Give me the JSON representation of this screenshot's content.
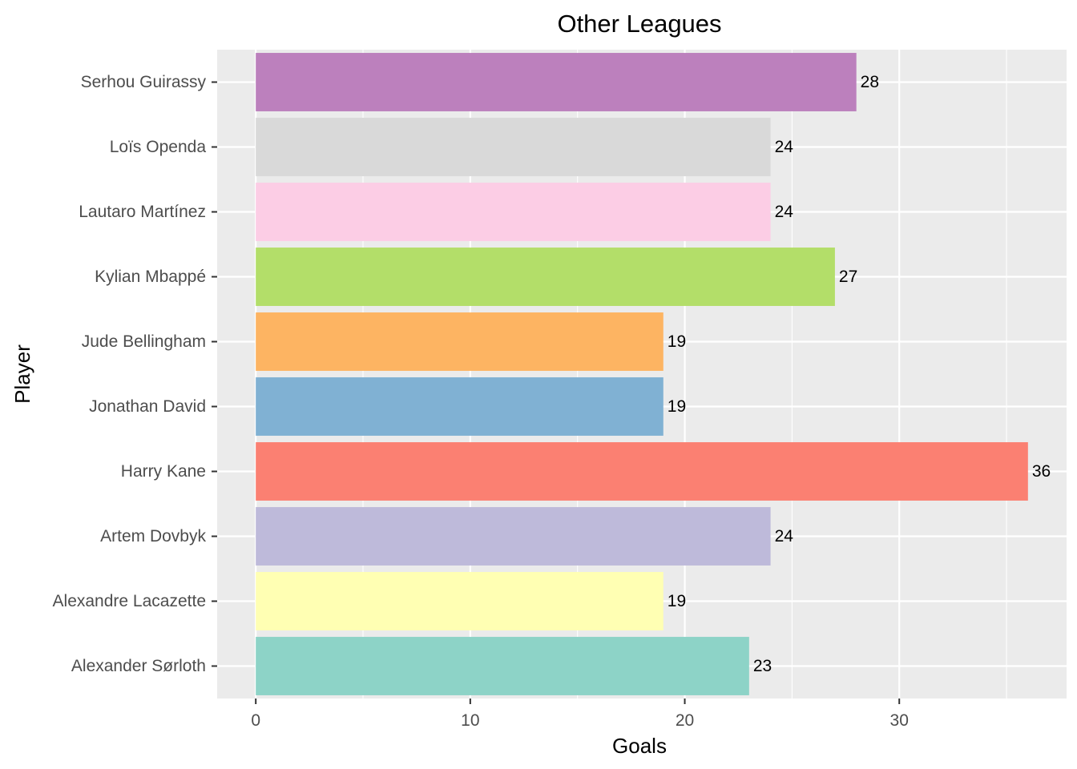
{
  "chart_data": {
    "type": "bar",
    "orientation": "horizontal",
    "title": "Other Leagues",
    "xlabel": "Goals",
    "ylabel": "Player",
    "xlim": [
      -1.8,
      37.8
    ],
    "x_ticks": [
      0,
      10,
      20,
      30
    ],
    "x_tick_labels": [
      "0",
      "10",
      "20",
      "30"
    ],
    "grid": true,
    "legend": "none",
    "categories": [
      "Serhou Guirassy",
      "Loïs Openda",
      "Lautaro Martínez",
      "Kylian Mbappé",
      "Jude Bellingham",
      "Jonathan David",
      "Harry Kane",
      "Artem Dovbyk",
      "Alexandre Lacazette",
      "Alexander Sørloth"
    ],
    "values": [
      28,
      24,
      24,
      27,
      19,
      19,
      36,
      24,
      19,
      23
    ],
    "data_labels": [
      "28",
      "24",
      "24",
      "27",
      "19",
      "19",
      "36",
      "24",
      "19",
      "23"
    ],
    "colors": [
      "#BC80BD",
      "#D9D9D9",
      "#FCCDE5",
      "#B3DE69",
      "#FDB462",
      "#80B1D3",
      "#FB8072",
      "#BEBADA",
      "#FFFFB3",
      "#8DD3C7"
    ],
    "panel_background": "#EBEBEB",
    "grid_color": "#FFFFFF"
  }
}
